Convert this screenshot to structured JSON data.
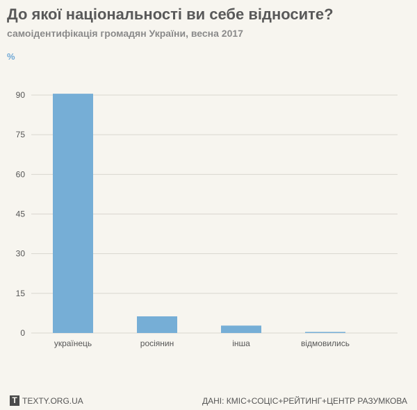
{
  "header": {
    "title": "До якої національності ви себе відносите?",
    "subtitle": "самоідентифікація громадян України, весна 2017",
    "unit": "%"
  },
  "footer": {
    "logo_letter": "Т",
    "site": "TEXTY.ORG.UA",
    "source": "ДАНІ: КМІС+СОЦІС+РЕЙТИНГ+ЦЕНТР РАЗУМКОВА"
  },
  "colors": {
    "bar": "#76aed6",
    "grid": "#d9d6cf",
    "text": "#555555"
  },
  "chart_data": {
    "type": "bar",
    "categories": [
      "українець",
      "росіянин",
      "інша",
      "відмовились"
    ],
    "values": [
      90.5,
      6.3,
      2.8,
      0.4
    ],
    "title": "До якої національності ви себе відносите?",
    "subtitle": "самоідентифікація громадян України, весна 2017",
    "xlabel": "",
    "ylabel": "%",
    "ylim": [
      0,
      90
    ],
    "yticks": [
      0,
      15,
      30,
      45,
      60,
      75,
      90
    ],
    "grid": true,
    "legend": "none"
  }
}
